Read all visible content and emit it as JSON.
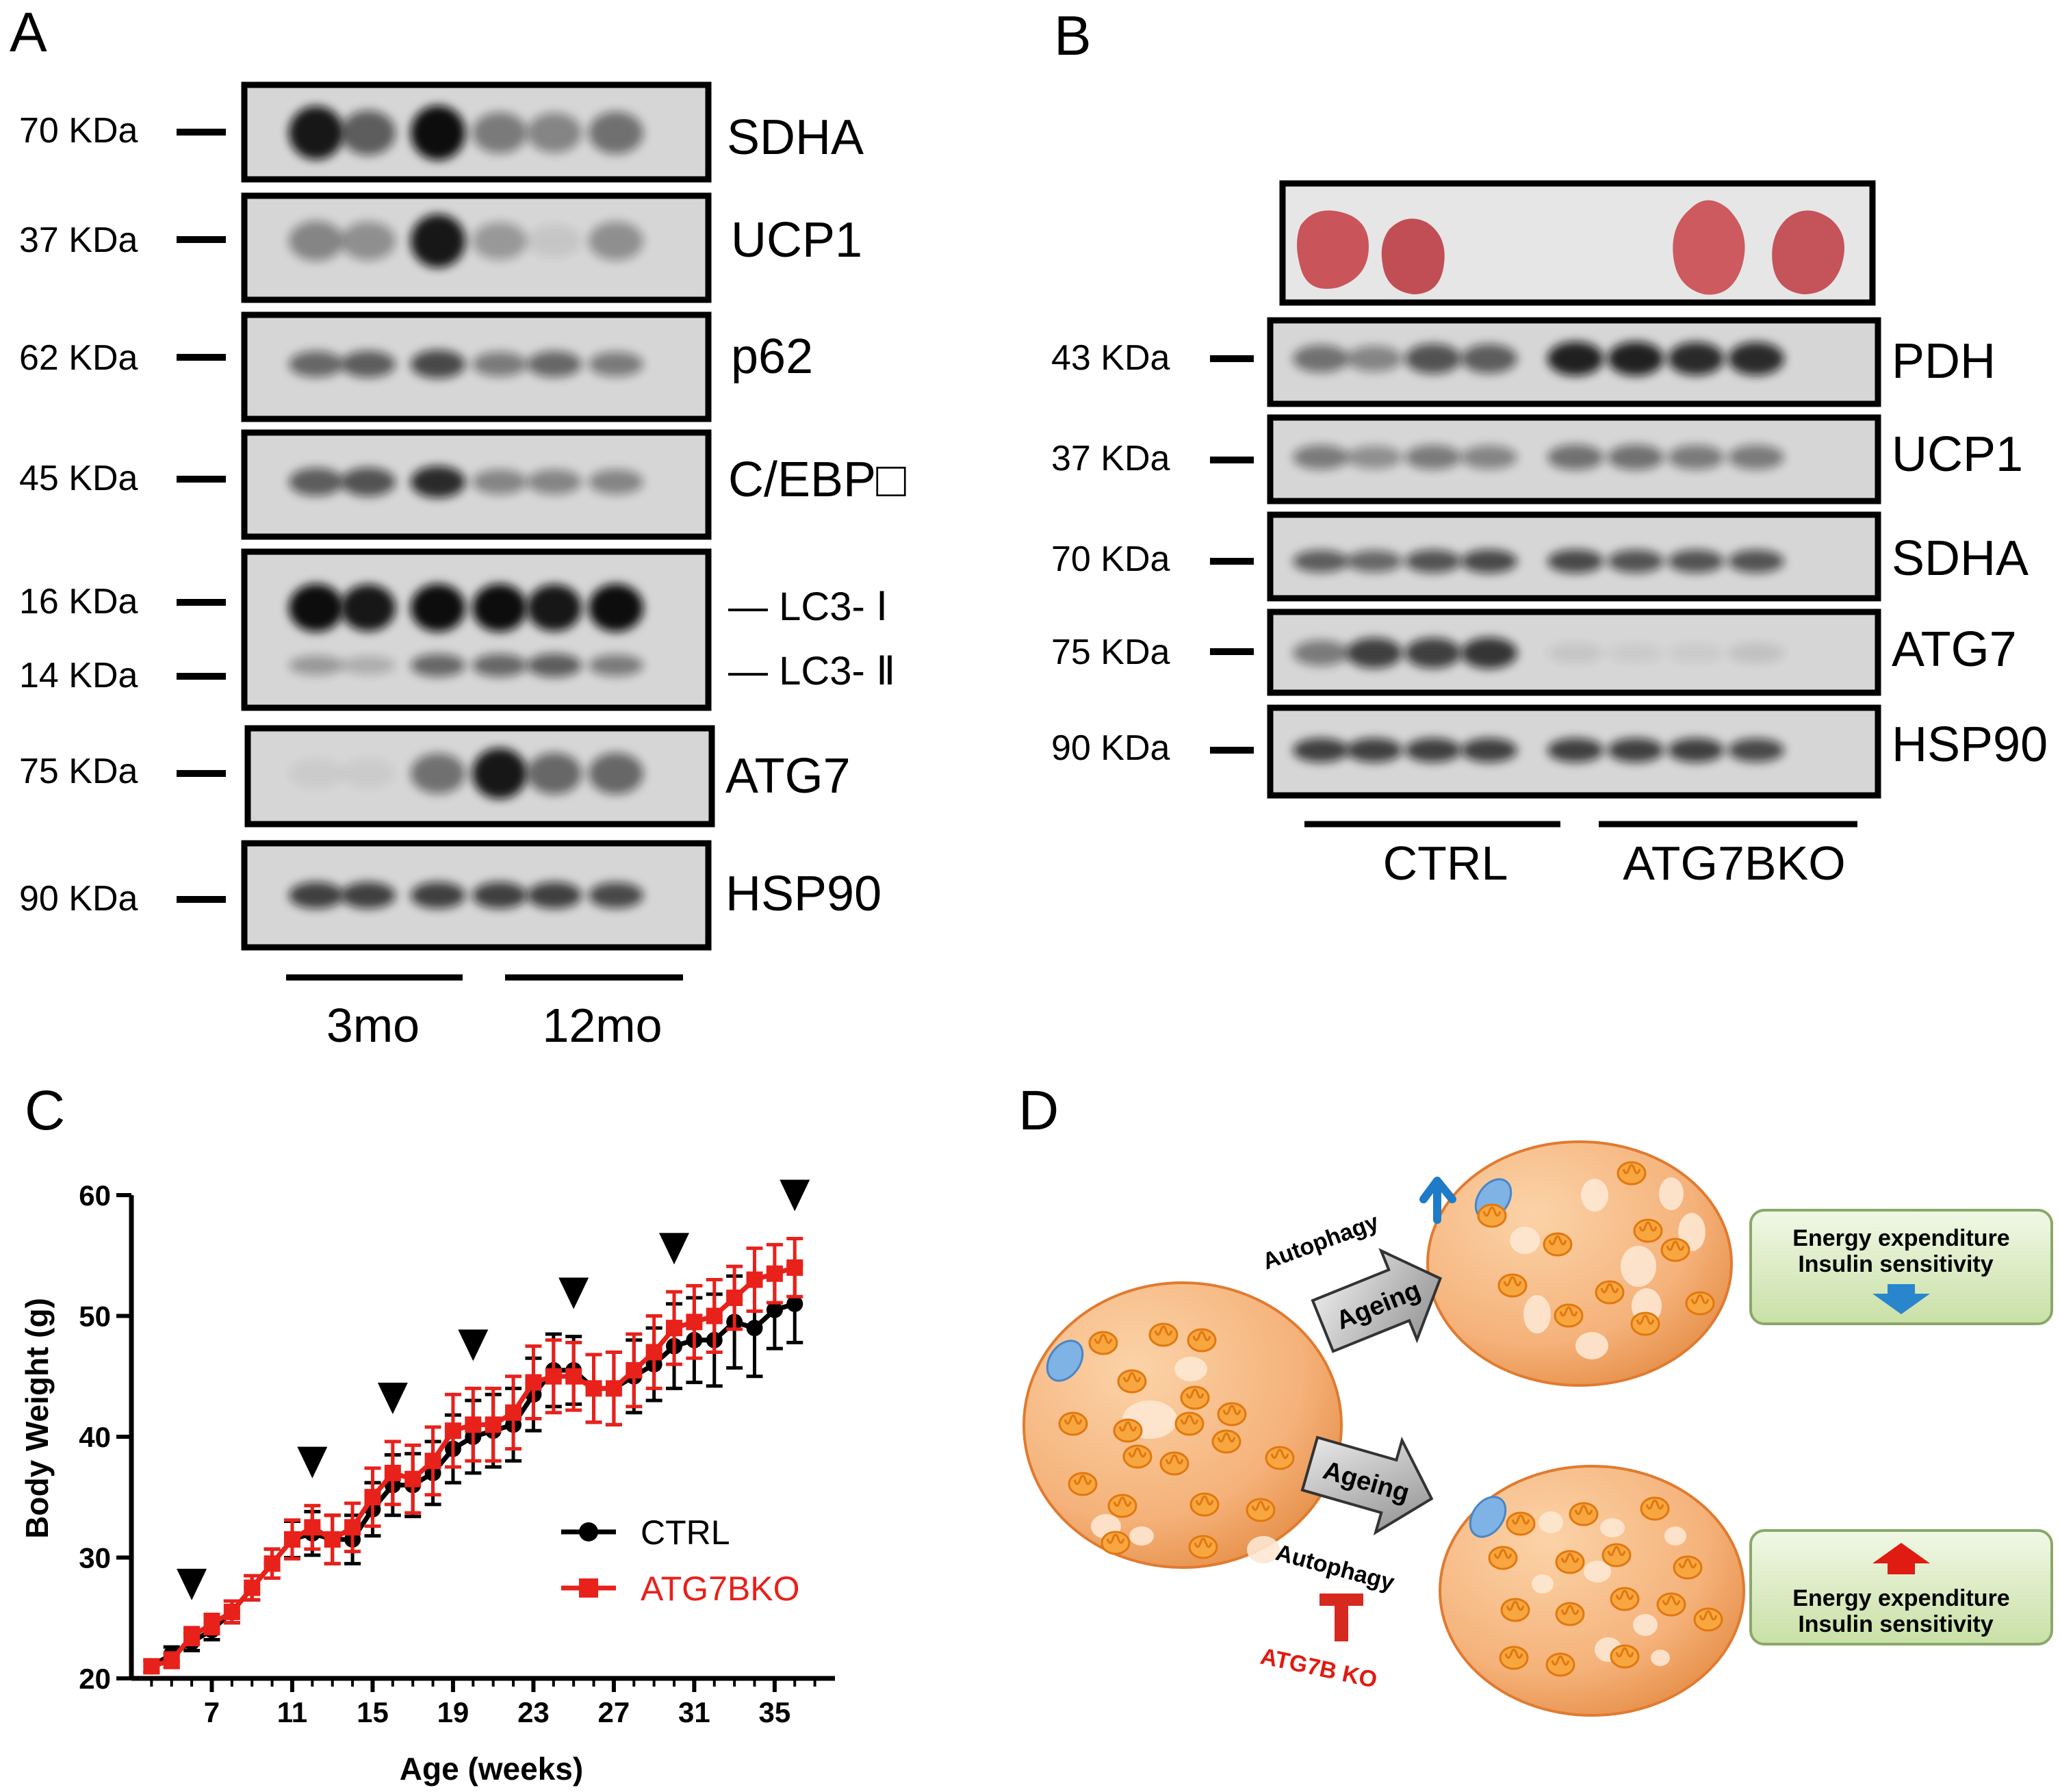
{
  "panels": {
    "a": {
      "letter": "A",
      "mw_labels": [
        "70 KDa",
        "37 KDa",
        "62 KDa",
        "45 KDa",
        "16 KDa",
        "14 KDa",
        "75 KDa",
        "90 KDa"
      ],
      "protein_labels": [
        "SDHA",
        "UCP1",
        "p62",
        "C/EBP□",
        "— LC3- Ⅰ",
        "— LC3- Ⅱ",
        "ATG7",
        "HSP90"
      ],
      "groups": [
        "3mo",
        "12mo"
      ],
      "band_intensity": {
        "SDHA": [
          0.95,
          0.6,
          1.0,
          0.45,
          0.4,
          0.5
        ],
        "UCP1": [
          0.4,
          0.35,
          0.95,
          0.3,
          0.08,
          0.35
        ],
        "p62": [
          0.55,
          0.6,
          0.7,
          0.45,
          0.55,
          0.45
        ],
        "C/EBP": [
          0.6,
          0.65,
          0.85,
          0.4,
          0.4,
          0.4
        ],
        "LC3-I": [
          1.0,
          0.95,
          1.0,
          1.0,
          0.95,
          1.0
        ],
        "LC3-II": [
          0.3,
          0.2,
          0.55,
          0.55,
          0.6,
          0.45
        ],
        "ATG7": [
          0.05,
          0.05,
          0.5,
          0.95,
          0.55,
          0.55
        ],
        "HSP90": [
          0.75,
          0.75,
          0.75,
          0.75,
          0.75,
          0.7
        ]
      }
    },
    "b": {
      "letter": "B",
      "mw_labels": [
        "43 KDa",
        "37 KDa",
        "70 KDa",
        "75 KDa",
        "90 KDa"
      ],
      "protein_labels": [
        "PDH",
        "UCP1",
        "SDHA",
        "ATG7",
        "HSP90"
      ],
      "groups": [
        "CTRL",
        "ATG7BKO"
      ],
      "band_intensity": {
        "PDH": [
          0.5,
          0.4,
          0.65,
          0.6,
          0.9,
          0.9,
          0.85,
          0.85
        ],
        "UCP1": [
          0.45,
          0.35,
          0.45,
          0.4,
          0.5,
          0.5,
          0.45,
          0.45
        ],
        "SDHA": [
          0.6,
          0.55,
          0.65,
          0.7,
          0.7,
          0.65,
          0.65,
          0.65
        ],
        "ATG7": [
          0.45,
          0.75,
          0.75,
          0.8,
          0.08,
          0.05,
          0.05,
          0.1
        ],
        "HSP90": [
          0.75,
          0.75,
          0.75,
          0.75,
          0.75,
          0.75,
          0.75,
          0.7
        ]
      }
    },
    "c": {
      "letter": "C"
    },
    "d": {
      "letter": "D",
      "labels": {
        "autophagy_top": "Autophagy",
        "ageing_top": "Ageing",
        "ageing_bottom": "Ageing",
        "autophagy_bottom": "Autophagy",
        "ko_label": "ATG7B KO",
        "box_top_line1": "Energy expenditure",
        "box_top_line2": "Insulin sensitivity",
        "box_bottom_line1": "Energy expenditure",
        "box_bottom_line2": "Insulin sensitivity"
      },
      "colors": {
        "cell_fill": "#f5b27a",
        "mito": "#f08a1e",
        "box_fill": "#d9ecc0",
        "up_arrow": "#1e7bc8",
        "down_arrow": "#2a86cc",
        "red_arrow": "#e01b12",
        "ko_text": "#e01b12"
      }
    }
  },
  "chart_data": {
    "type": "line",
    "title": "",
    "xlabel": "Age (weeks)",
    "ylabel": "Body Weight (g)",
    "xlim": [
      3,
      38
    ],
    "ylim": [
      20,
      60
    ],
    "xticks": [
      7,
      11,
      15,
      19,
      23,
      27,
      31,
      35
    ],
    "yticks": [
      20,
      30,
      40,
      50,
      60
    ],
    "legend_position": "bottom-right",
    "series": [
      {
        "name": "CTRL",
        "color": "#000000",
        "marker": "circle",
        "x": [
          4,
          5,
          6,
          7,
          8,
          9,
          10,
          11,
          12,
          13,
          14,
          15,
          16,
          17,
          18,
          19,
          20,
          21,
          22,
          23,
          24,
          25,
          26,
          27,
          28,
          29,
          30,
          31,
          32,
          33,
          34,
          35,
          36
        ],
        "y": [
          21,
          22,
          23,
          24,
          25.5,
          27.5,
          29.5,
          31.5,
          32,
          31.5,
          31.5,
          34,
          36,
          36,
          37,
          39,
          40,
          40.5,
          41,
          43.5,
          45.5,
          45.5,
          44,
          44,
          45,
          46,
          47.5,
          48,
          48,
          49.5,
          49,
          50.5,
          51
        ],
        "err": [
          0.5,
          0.6,
          0.7,
          0.8,
          0.9,
          1.0,
          1.2,
          1.5,
          1.8,
          2.0,
          2.0,
          2.2,
          2.5,
          2.6,
          2.6,
          2.8,
          3.0,
          3.0,
          3.0,
          3.0,
          3.0,
          2.8,
          2.8,
          3.0,
          3.0,
          3.0,
          3.5,
          3.5,
          3.8,
          3.8,
          4.0,
          3.2,
          3.2
        ]
      },
      {
        "name": "ATG7BKO",
        "color": "#e8211b",
        "marker": "square",
        "x": [
          4,
          5,
          6,
          7,
          8,
          9,
          10,
          11,
          12,
          13,
          14,
          15,
          16,
          17,
          18,
          19,
          20,
          21,
          22,
          23,
          24,
          25,
          26,
          27,
          28,
          29,
          30,
          31,
          32,
          33,
          34,
          35,
          36
        ],
        "y": [
          21,
          21.5,
          23.5,
          24.5,
          25.5,
          27.5,
          29.5,
          31.5,
          32.5,
          31.5,
          32.5,
          35,
          37,
          36.5,
          38,
          40.5,
          41,
          41,
          42,
          44.5,
          45,
          45,
          44,
          44,
          45.5,
          47,
          49,
          49.5,
          50,
          51.5,
          53,
          53.5,
          54
        ],
        "err": [
          0.5,
          0.6,
          0.7,
          0.8,
          0.9,
          1.0,
          1.2,
          1.6,
          1.8,
          2.0,
          2.0,
          2.4,
          2.6,
          2.8,
          2.8,
          3.0,
          3.0,
          3.0,
          3.0,
          3.0,
          3.0,
          2.8,
          2.8,
          3.0,
          3.0,
          3.0,
          3.0,
          3.0,
          3.0,
          2.6,
          2.6,
          2.4,
          2.4
        ]
      }
    ],
    "arrow_markers_x": [
      6,
      12,
      16,
      20,
      25,
      30,
      36
    ]
  }
}
